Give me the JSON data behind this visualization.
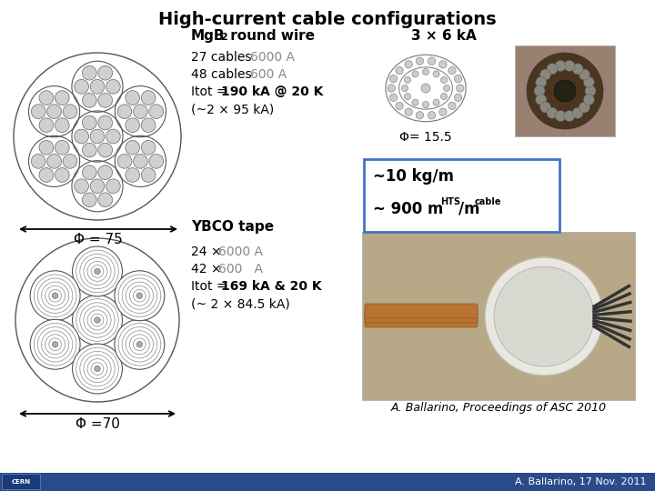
{
  "title": "High-current cable configurations",
  "title_fontsize": 14,
  "background_color": "#ffffff",
  "mgb2_label": "MgB",
  "mgb2_subscript": "2",
  "mgb2_label2": " round wire",
  "phi1_label": "Φ = 75",
  "phi2_label": "Φ= 15.5",
  "label_3x6": "3 × 6 kA",
  "box_line1": "~10 kg/m",
  "box_line2_main": "~ 900 m",
  "box_line2_sub1": "HTS",
  "box_line2_slash": "/m",
  "box_line2_sub2": "cable",
  "ybco_label": "YBCO tape",
  "phi3_label": "Φ =70",
  "citation": "A. Ballarino, Proceedings of ASC 2010",
  "footer": "A. Ballarino, 17 Nov. 2011",
  "border_color": "#4472c4",
  "text_color": "#000000",
  "gray_color": "#888888",
  "footer_bg": "#2a4a8a"
}
